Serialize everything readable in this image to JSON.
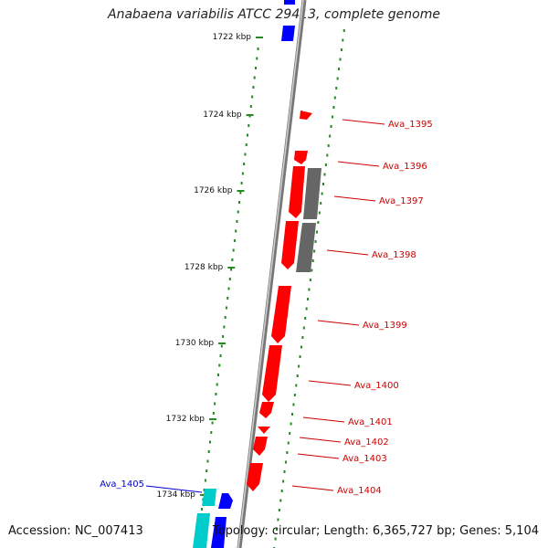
{
  "title": "Anabaena variabilis ATCC 29413, complete genome",
  "footer": {
    "accession": "Accession: NC_007413",
    "info": "Topology: circular; Length: 6,365,727 bp; Genes: 5,104"
  },
  "colors": {
    "forward_gene": "#ff0000",
    "reverse_gene": "#0000ff",
    "highlight_gene": "#00cccc",
    "pseudo_gene": "#666666",
    "tick": "#228b22",
    "backbone": "#999999",
    "label_forward": "#cc0000",
    "label_reverse": "#0000cc"
  },
  "scale": {
    "unit": "kbp",
    "ticks": [
      {
        "value": 1722,
        "label": "1722 kbp"
      },
      {
        "value": 1724,
        "label": "1724 kbp"
      },
      {
        "value": 1726,
        "label": "1726 kbp"
      },
      {
        "value": 1728,
        "label": "1728 kbp"
      },
      {
        "value": 1730,
        "label": "1730 kbp"
      },
      {
        "value": 1732,
        "label": "1732 kbp"
      },
      {
        "value": 1734,
        "label": "1734 kbp"
      }
    ]
  },
  "genes": [
    {
      "name": "Ava_1395",
      "color": "forward_gene",
      "label_color": "label_forward"
    },
    {
      "name": "Ava_1396",
      "color": "forward_gene",
      "label_color": "label_forward"
    },
    {
      "name": "Ava_1397",
      "color": "forward_gene",
      "label_color": "label_forward"
    },
    {
      "name": "Ava_1398",
      "color": "forward_gene",
      "label_color": "label_forward"
    },
    {
      "name": "Ava_1399",
      "color": "forward_gene",
      "label_color": "label_forward"
    },
    {
      "name": "Ava_1400",
      "color": "forward_gene",
      "label_color": "label_forward"
    },
    {
      "name": "Ava_1401",
      "color": "forward_gene",
      "label_color": "label_forward"
    },
    {
      "name": "Ava_1402",
      "color": "forward_gene",
      "label_color": "label_forward"
    },
    {
      "name": "Ava_1403",
      "color": "forward_gene",
      "label_color": "label_forward"
    },
    {
      "name": "Ava_1404",
      "color": "forward_gene",
      "label_color": "label_forward"
    },
    {
      "name": "Ava_1405",
      "color": "highlight_gene",
      "label_color": "label_reverse"
    }
  ]
}
